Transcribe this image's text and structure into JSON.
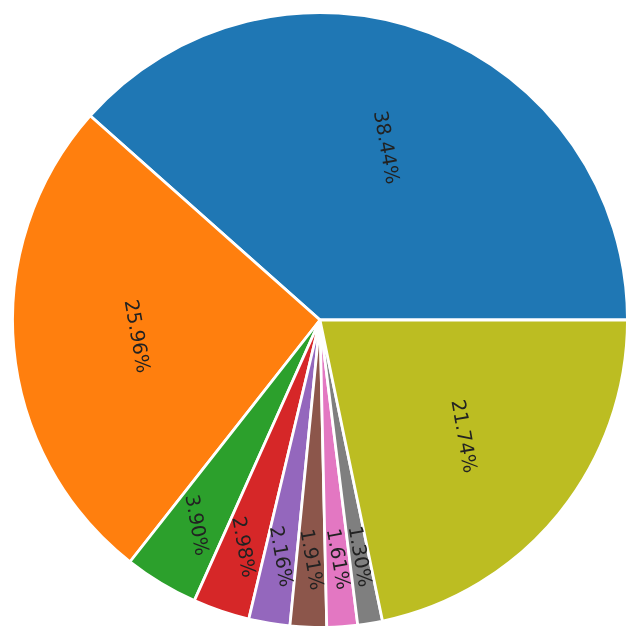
{
  "chart_data": {
    "type": "pie",
    "categories": [
      null,
      null,
      null,
      null,
      null,
      null,
      null,
      null,
      null
    ],
    "values": [
      38.44,
      25.96,
      3.9,
      2.98,
      2.16,
      1.91,
      1.61,
      1.3,
      21.74
    ],
    "value_labels": [
      "38.44%",
      "25.96%",
      "3.90%",
      "2.98%",
      "2.16%",
      "1.91%",
      "1.61%",
      "1.30%",
      "21.74%"
    ],
    "colors": [
      "#1f77b4",
      "#ff7f0e",
      "#2ca02c",
      "#d62728",
      "#9467bd",
      "#8c564b",
      "#e377c2",
      "#7f7f7f",
      "#bcbd22"
    ]
  }
}
